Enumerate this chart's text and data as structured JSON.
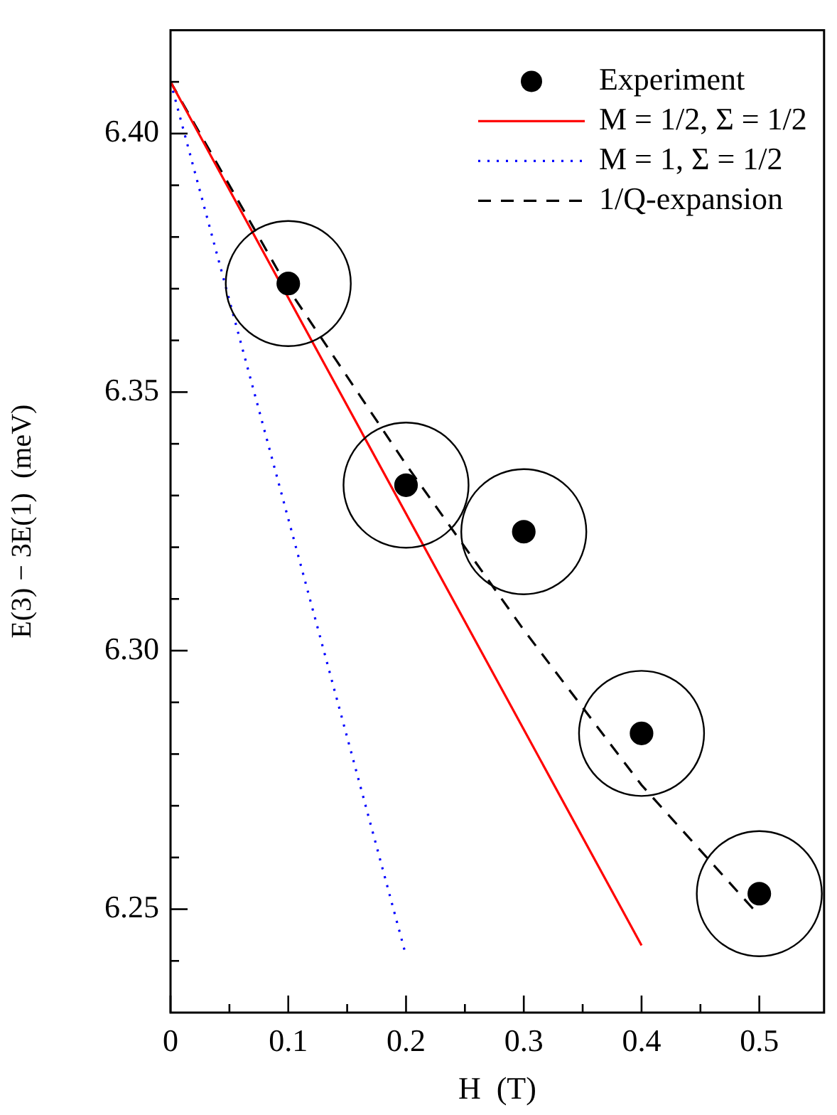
{
  "chart_data": {
    "type": "line",
    "xlabel": "H  (T)",
    "ylabel": "E(3) − 3E(1)  (meV)",
    "xlim": [
      0,
      0.555
    ],
    "ylim": [
      6.23,
      6.42
    ],
    "xticks": [
      0,
      {
        "value": 0.05,
        "label": null
      },
      0.1,
      {
        "value": 0.15,
        "label": null
      },
      0.2,
      {
        "value": 0.25,
        "label": null
      },
      0.3,
      {
        "value": 0.35,
        "label": null
      },
      0.4,
      {
        "value": 0.45,
        "label": null
      },
      0.5
    ],
    "yticks": [
      {
        "value": 6.24,
        "label": null
      },
      6.25,
      {
        "value": 6.26,
        "label": null
      },
      {
        "value": 6.27,
        "label": null
      },
      {
        "value": 6.28,
        "label": null
      },
      {
        "value": 6.29,
        "label": null
      },
      {
        "value": 6.3,
        "label": "6.30"
      },
      {
        "value": 6.31,
        "label": null
      },
      {
        "value": 6.32,
        "label": null
      },
      {
        "value": 6.33,
        "label": null
      },
      {
        "value": 6.34,
        "label": null
      },
      6.35,
      {
        "value": 6.36,
        "label": null
      },
      {
        "value": 6.37,
        "label": null
      },
      {
        "value": 6.38,
        "label": null
      },
      {
        "value": 6.39,
        "label": null
      },
      {
        "value": 6.4,
        "label": "6.40"
      },
      {
        "value": 6.41,
        "label": null
      }
    ],
    "grid": false,
    "legend": "top right",
    "series": [
      {
        "name": "Experiment",
        "type": "scatter",
        "marker": "circle",
        "color": "#000000",
        "x": [
          0.1,
          0.2,
          0.3,
          0.4,
          0.5
        ],
        "values": [
          6.371,
          6.332,
          6.323,
          6.284,
          6.253
        ]
      },
      {
        "name": "M = 1/2, Σ = 1/2",
        "line_style": "solid",
        "marker": "none",
        "color": "#ff0000",
        "x": [
          0,
          0.4
        ],
        "values": [
          6.41,
          6.243
        ]
      },
      {
        "name": "M = 1, Σ = 1/2",
        "line_style": "dotted",
        "marker": "none",
        "color": "#0000ff",
        "x": [
          0,
          0.2
        ],
        "values": [
          6.41,
          6.241
        ]
      },
      {
        "name": "1/Q-expansion",
        "line_style": "dashed",
        "marker": "none",
        "color": "#000000",
        "x": [
          0,
          0.1,
          0.2,
          0.3,
          0.4,
          0.495
        ],
        "values": [
          6.41,
          6.37,
          6.336,
          6.304,
          6.274,
          6.25
        ]
      }
    ]
  }
}
